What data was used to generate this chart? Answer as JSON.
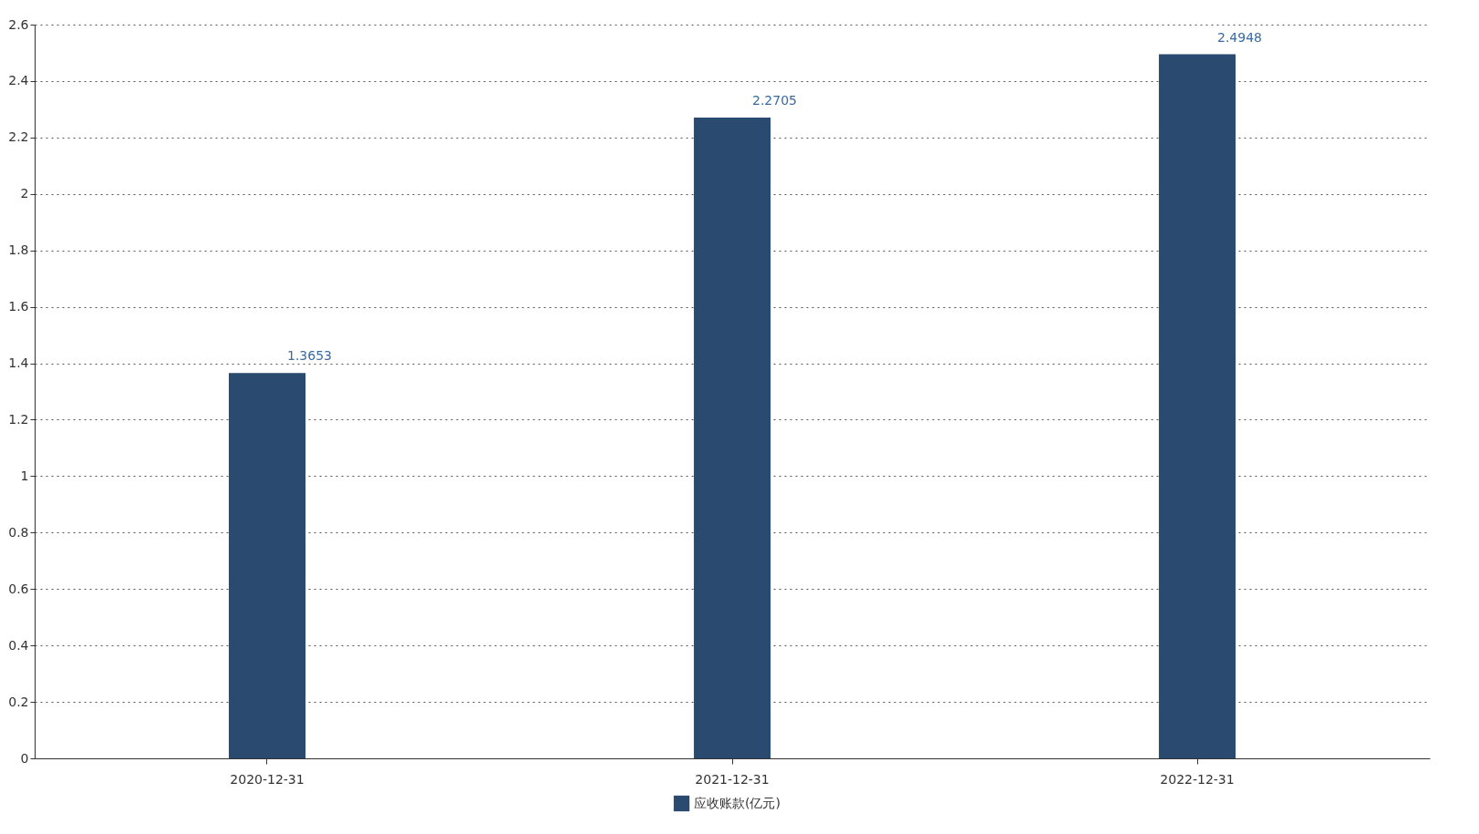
{
  "chart_data": {
    "type": "bar",
    "categories": [
      "2020-12-31",
      "2021-12-31",
      "2022-12-31"
    ],
    "series": [
      {
        "name": "应收账款(亿元)",
        "color": "#2b4a70",
        "values": [
          1.3653,
          2.2705,
          2.4948
        ]
      }
    ],
    "ylim": [
      0,
      2.6
    ],
    "yticks": [
      0,
      0.2,
      0.4,
      0.6,
      0.8,
      1,
      1.2,
      1.4,
      1.6,
      1.8,
      2,
      2.2,
      2.4,
      2.6
    ],
    "grid": "y",
    "legend": "bottom",
    "data_labels": true
  }
}
